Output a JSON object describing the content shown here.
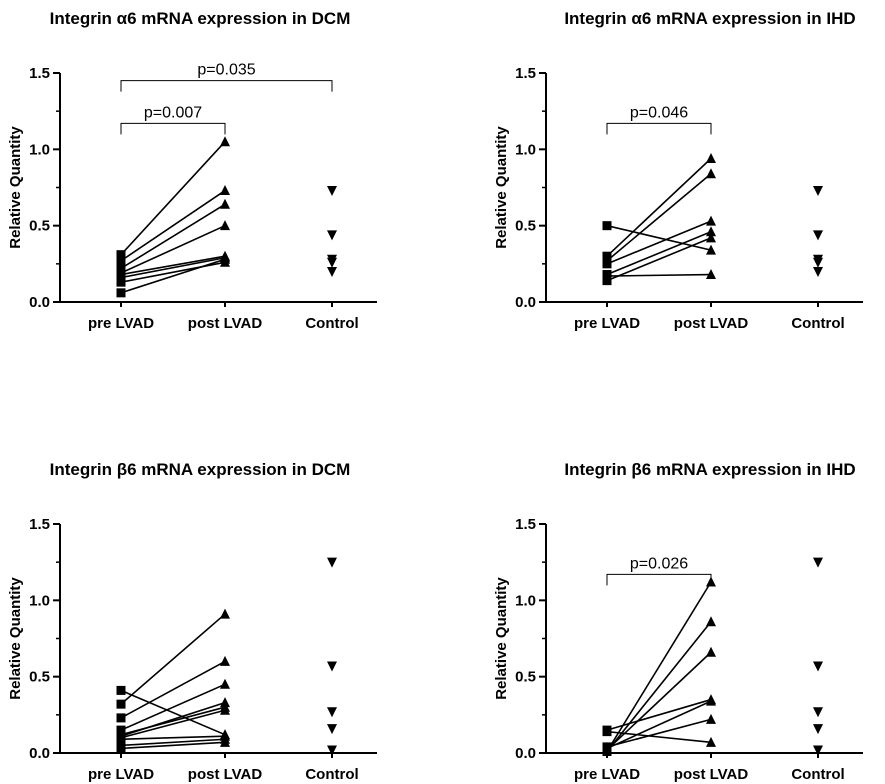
{
  "chart_data": [
    {
      "type": "scatter",
      "title": "Integrin α6 mRNA expression in DCM",
      "ylabel": "Relative Quantity",
      "ylim": [
        0,
        1.5
      ],
      "yticks": [
        "0.0",
        "0.5",
        "1.0",
        "1.5"
      ],
      "categories": [
        "pre LVAD",
        "post LVAD",
        "Control"
      ],
      "paired_lines": true,
      "pairs": [
        [
          0.31,
          1.05
        ],
        [
          0.27,
          0.73
        ],
        [
          0.22,
          0.64
        ],
        [
          0.19,
          0.5
        ],
        [
          0.18,
          0.3
        ],
        [
          0.16,
          0.29
        ],
        [
          0.13,
          0.26
        ],
        [
          0.06,
          0.28
        ]
      ],
      "control": [
        0.73,
        0.44,
        0.28,
        0.26,
        0.2
      ],
      "significance": [
        {
          "from": "pre LVAD",
          "to": "post LVAD",
          "label": "p=0.007"
        },
        {
          "from": "pre LVAD",
          "to": "Control",
          "label": "p=0.035"
        }
      ]
    },
    {
      "type": "scatter",
      "title": "Integrin α6 mRNA expression in IHD",
      "ylabel": "Relative Quantity",
      "ylim": [
        0,
        1.5
      ],
      "yticks": [
        "0.0",
        "0.5",
        "1.0",
        "1.5"
      ],
      "categories": [
        "pre LVAD",
        "post LVAD",
        "Control"
      ],
      "paired_lines": true,
      "pairs": [
        [
          0.5,
          0.34
        ],
        [
          0.3,
          0.94
        ],
        [
          0.27,
          0.84
        ],
        [
          0.25,
          0.53
        ],
        [
          0.18,
          0.46
        ],
        [
          0.17,
          0.18
        ],
        [
          0.14,
          0.42
        ]
      ],
      "control": [
        0.73,
        0.44,
        0.28,
        0.26,
        0.2
      ],
      "significance": [
        {
          "from": "pre LVAD",
          "to": "post LVAD",
          "label": "p=0.046"
        }
      ]
    },
    {
      "type": "scatter",
      "title": "Integrin β6 mRNA expression in DCM",
      "ylabel": "Relative Quantity",
      "ylim": [
        0,
        1.5
      ],
      "yticks": [
        "0.0",
        "0.5",
        "1.0",
        "1.5"
      ],
      "categories": [
        "pre LVAD",
        "post LVAD",
        "Control"
      ],
      "paired_lines": true,
      "pairs": [
        [
          0.41,
          0.12
        ],
        [
          0.32,
          0.91
        ],
        [
          0.23,
          0.6
        ],
        [
          0.15,
          0.45
        ],
        [
          0.12,
          0.3
        ],
        [
          0.11,
          0.33
        ],
        [
          0.1,
          0.28
        ],
        [
          0.09,
          0.11
        ],
        [
          0.05,
          0.09
        ],
        [
          0.03,
          0.07
        ]
      ],
      "control": [
        1.25,
        0.57,
        0.27,
        0.16,
        0.02
      ],
      "significance": []
    },
    {
      "type": "scatter",
      "title": "Integrin β6 mRNA expression in IHD",
      "ylabel": "Relative Quantity",
      "ylim": [
        0,
        1.5
      ],
      "yticks": [
        "0.0",
        "0.5",
        "1.0",
        "1.5"
      ],
      "categories": [
        "pre LVAD",
        "post LVAD",
        "Control"
      ],
      "paired_lines": true,
      "pairs": [
        [
          0.15,
          0.35
        ],
        [
          0.14,
          0.07
        ],
        [
          0.04,
          0.22
        ],
        [
          0.03,
          0.34
        ],
        [
          0.02,
          0.66
        ],
        [
          0.01,
          0.86
        ],
        [
          0.01,
          1.12
        ]
      ],
      "control": [
        1.25,
        0.57,
        0.27,
        0.16,
        0.02
      ],
      "significance": [
        {
          "from": "pre LVAD",
          "to": "post LVAD",
          "label": "p=0.026"
        }
      ]
    }
  ]
}
